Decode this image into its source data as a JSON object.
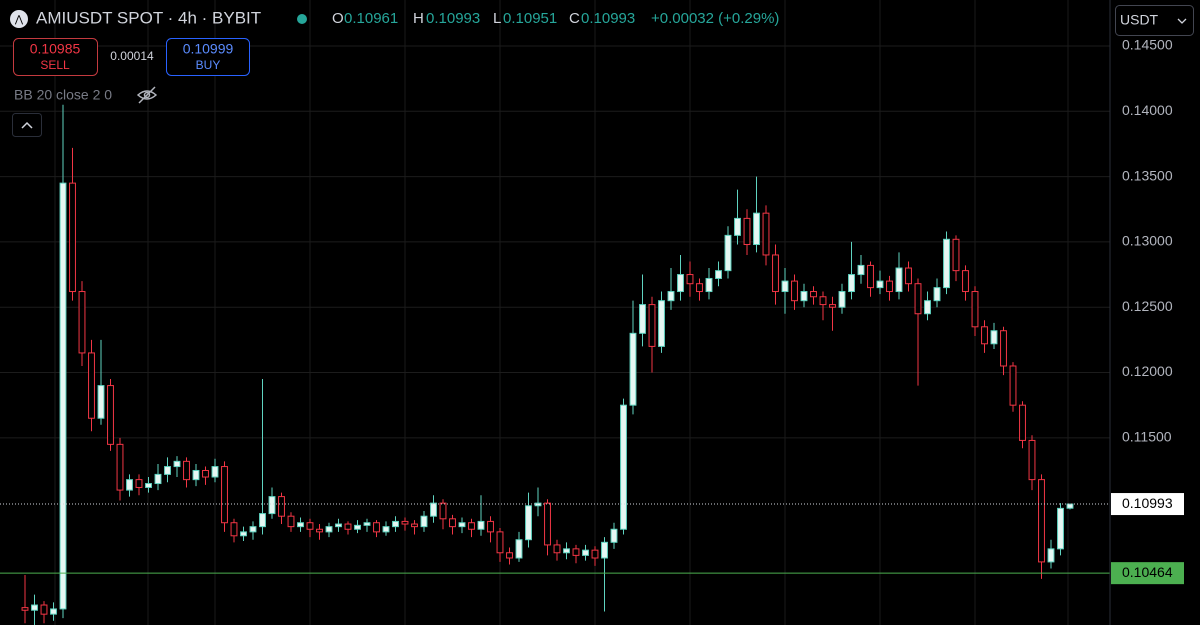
{
  "header": {
    "title": "AMIUSDT SPOT · 4h · BYBIT",
    "o_label": "O",
    "open": "0.10961",
    "h_label": "H",
    "high": "0.10993",
    "l_label": "L",
    "low": "0.10951",
    "c_label": "C",
    "close": "0.10993",
    "change": "+0.00032 (+0.29%)",
    "sell_price": "0.10985",
    "sell_label": "SELL",
    "spread": "0.00014",
    "buy_price": "0.10999",
    "buy_label": "BUY",
    "indicator": "BB 20 close 2 0",
    "currency": "USDT"
  },
  "chart_data": {
    "type": "candlestick",
    "up_color": "#5fd3c0",
    "up_fill": "#e6f7f3",
    "down_color": "#f23645",
    "grid": true,
    "ylim": [
      0.10067,
      0.14852
    ],
    "yticks": [
      {
        "value": 0.145,
        "label": "0.14500"
      },
      {
        "value": 0.14,
        "label": "0.14000"
      },
      {
        "value": 0.135,
        "label": "0.13500"
      },
      {
        "value": 0.13,
        "label": "0.13000"
      },
      {
        "value": 0.125,
        "label": "0.12500"
      },
      {
        "value": 0.12,
        "label": "0.12000"
      },
      {
        "value": 0.115,
        "label": "0.11500"
      }
    ],
    "last_price": {
      "value": 0.10993,
      "label": "0.10993"
    },
    "level_line": {
      "value": 0.10464,
      "label": "0.10464",
      "color": "#4caf50"
    },
    "open": [
      0.102,
      0.1018,
      0.1022,
      0.1015,
      0.1019,
      0.1345,
      0.1262,
      0.1215,
      0.1165,
      0.119,
      0.1145,
      0.111,
      0.1118,
      0.1112,
      0.1115,
      0.1122,
      0.1128,
      0.1132,
      0.1118,
      0.1125,
      0.112,
      0.1128,
      0.1085,
      0.1075,
      0.1078,
      0.1082,
      0.1092,
      0.1105,
      0.109,
      0.1082,
      0.1085,
      0.108,
      0.1078,
      0.1082,
      0.1084,
      0.108,
      0.1083,
      0.1085,
      0.1078,
      0.1082,
      0.1086,
      0.1084,
      0.1082,
      0.109,
      0.11,
      0.1088,
      0.1082,
      0.1085,
      0.108,
      0.1086,
      0.1078,
      0.1062,
      0.1058,
      0.1072,
      0.1098,
      0.11,
      0.1068,
      0.1062,
      0.1065,
      0.106,
      0.1064,
      0.1058,
      0.107,
      0.108,
      0.1175,
      0.123,
      0.1252,
      0.122,
      0.1255,
      0.1262,
      0.1275,
      0.1268,
      0.1262,
      0.1272,
      0.1278,
      0.1305,
      0.1318,
      0.1298,
      0.1322,
      0.129,
      0.1262,
      0.127,
      0.1255,
      0.1262,
      0.1258,
      0.1252,
      0.125,
      0.1262,
      0.1275,
      0.1282,
      0.1265,
      0.127,
      0.1262,
      0.128,
      0.1268,
      0.1245,
      0.1255,
      0.1265,
      0.1302,
      0.1278,
      0.1262,
      0.1235,
      0.1222,
      0.1232,
      0.1205,
      0.1175,
      0.1148,
      0.1118,
      0.1055,
      0.1065,
      0.10961
    ],
    "high": [
      0.1045,
      0.103,
      0.1025,
      0.1024,
      0.1405,
      0.1372,
      0.127,
      0.1225,
      0.1225,
      0.1195,
      0.115,
      0.1122,
      0.1122,
      0.112,
      0.113,
      0.1135,
      0.1136,
      0.1135,
      0.113,
      0.1128,
      0.1134,
      0.1132,
      0.1088,
      0.1082,
      0.1086,
      0.1195,
      0.1112,
      0.1108,
      0.1093,
      0.1089,
      0.1088,
      0.1084,
      0.1085,
      0.1088,
      0.1086,
      0.1087,
      0.1088,
      0.1087,
      0.1086,
      0.109,
      0.1089,
      0.1087,
      0.1094,
      0.1106,
      0.1103,
      0.1091,
      0.1089,
      0.1088,
      0.1106,
      0.109,
      0.1081,
      0.1066,
      0.1078,
      0.1108,
      0.1112,
      0.1103,
      0.1072,
      0.107,
      0.1068,
      0.1068,
      0.1067,
      0.1074,
      0.1085,
      0.118,
      0.1255,
      0.1275,
      0.1258,
      0.1262,
      0.128,
      0.129,
      0.1285,
      0.1272,
      0.128,
      0.1285,
      0.1312,
      0.134,
      0.1325,
      0.135,
      0.1328,
      0.1298,
      0.128,
      0.1275,
      0.1268,
      0.1266,
      0.1262,
      0.1258,
      0.1268,
      0.13,
      0.129,
      0.1285,
      0.1278,
      0.1274,
      0.1292,
      0.1285,
      0.1272,
      0.1262,
      0.1272,
      0.1308,
      0.1305,
      0.1282,
      0.1266,
      0.124,
      0.1238,
      0.1235,
      0.1208,
      0.1178,
      0.1152,
      0.1122,
      0.1072,
      0.11,
      0.10993
    ],
    "low": [
      0.1008,
      0.1005,
      0.1008,
      0.101,
      0.1012,
      0.1255,
      0.1205,
      0.1155,
      0.116,
      0.114,
      0.1102,
      0.1105,
      0.1106,
      0.1108,
      0.111,
      0.1116,
      0.112,
      0.1112,
      0.1113,
      0.1114,
      0.1116,
      0.1078,
      0.107,
      0.1071,
      0.1072,
      0.1076,
      0.1088,
      0.1084,
      0.1078,
      0.1078,
      0.1074,
      0.1072,
      0.1074,
      0.1078,
      0.1076,
      0.1077,
      0.1078,
      0.1074,
      0.1075,
      0.1078,
      0.1079,
      0.1076,
      0.1078,
      0.1085,
      0.108,
      0.1076,
      0.1077,
      0.1074,
      0.1075,
      0.107,
      0.1055,
      0.1053,
      0.1055,
      0.1066,
      0.109,
      0.106,
      0.1056,
      0.1057,
      0.1054,
      0.1056,
      0.1052,
      0.1017,
      0.1065,
      0.1076,
      0.1168,
      0.122,
      0.12,
      0.1215,
      0.1248,
      0.1255,
      0.1258,
      0.1255,
      0.1256,
      0.1266,
      0.1272,
      0.1298,
      0.129,
      0.1292,
      0.1282,
      0.1252,
      0.1245,
      0.1248,
      0.125,
      0.1252,
      0.124,
      0.1232,
      0.1245,
      0.1256,
      0.1268,
      0.1258,
      0.126,
      0.1255,
      0.1256,
      0.1262,
      0.119,
      0.124,
      0.125,
      0.126,
      0.127,
      0.1255,
      0.1228,
      0.1215,
      0.1218,
      0.1198,
      0.117,
      0.1142,
      0.111,
      0.1042,
      0.105,
      0.106,
      0.10951
    ],
    "close": [
      0.1018,
      0.1022,
      0.1015,
      0.1019,
      0.1345,
      0.1262,
      0.1215,
      0.1165,
      0.119,
      0.1145,
      0.111,
      0.1118,
      0.1112,
      0.1115,
      0.1122,
      0.1128,
      0.1132,
      0.1118,
      0.1125,
      0.112,
      0.1128,
      0.1085,
      0.1075,
      0.1078,
      0.1082,
      0.1092,
      0.1105,
      0.109,
      0.1082,
      0.1085,
      0.108,
      0.1078,
      0.1082,
      0.1084,
      0.108,
      0.1083,
      0.1085,
      0.1078,
      0.1082,
      0.1086,
      0.1084,
      0.1082,
      0.109,
      0.11,
      0.1088,
      0.1082,
      0.1085,
      0.108,
      0.1086,
      0.1078,
      0.1062,
      0.1058,
      0.1072,
      0.1098,
      0.11,
      0.1068,
      0.1062,
      0.1065,
      0.106,
      0.1064,
      0.1058,
      0.107,
      0.108,
      0.1175,
      0.123,
      0.1252,
      0.122,
      0.1255,
      0.1262,
      0.1275,
      0.1268,
      0.1262,
      0.1272,
      0.1278,
      0.1305,
      0.1318,
      0.1298,
      0.1322,
      0.129,
      0.1262,
      0.127,
      0.1255,
      0.1262,
      0.1258,
      0.1252,
      0.125,
      0.1262,
      0.1275,
      0.1282,
      0.1265,
      0.127,
      0.1262,
      0.128,
      0.1268,
      0.1245,
      0.1255,
      0.1265,
      0.1302,
      0.1278,
      0.1262,
      0.1235,
      0.1222,
      0.1232,
      0.1205,
      0.1175,
      0.1148,
      0.1118,
      0.1055,
      0.1065,
      0.1096,
      0.10993
    ]
  }
}
